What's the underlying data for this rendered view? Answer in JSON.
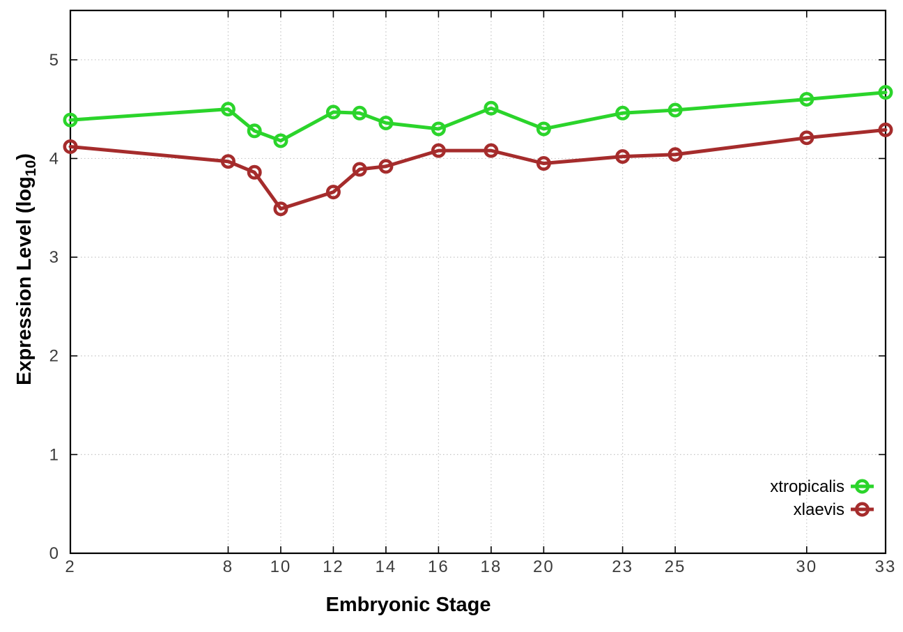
{
  "figure": {
    "background": "#ffffff"
  },
  "chart_data": {
    "type": "line",
    "title": "",
    "xlabel": "Embryonic Stage",
    "ylabel": "Expression Level (log10)",
    "ylabel_parts": {
      "pre": "Expression Level (log",
      "sub": "10",
      "post": ")"
    },
    "x": [
      2,
      8,
      9,
      10,
      12,
      13,
      14,
      16,
      18,
      20,
      23,
      25,
      30,
      33
    ],
    "series": [
      {
        "name": "xtropicalis",
        "color": "#2bd42b",
        "marker": "open-circle",
        "values": [
          4.39,
          4.5,
          4.28,
          4.18,
          4.47,
          4.46,
          4.36,
          4.3,
          4.51,
          4.3,
          4.46,
          4.49,
          4.6,
          4.67
        ]
      },
      {
        "name": "xlaevis",
        "color": "#a52c2c",
        "marker": "open-circle",
        "values": [
          4.12,
          3.97,
          3.86,
          3.49,
          3.66,
          3.89,
          3.92,
          4.08,
          4.08,
          3.95,
          4.02,
          4.04,
          4.21,
          4.29
        ]
      }
    ],
    "xticks": [
      2,
      8,
      10,
      12,
      14,
      16,
      18,
      20,
      23,
      25,
      30,
      33
    ],
    "yticks": [
      0,
      1,
      2,
      3,
      4,
      5
    ],
    "xlim": [
      2,
      33
    ],
    "ylim": [
      0,
      5.5
    ],
    "grid": true,
    "grid_style": "dotted",
    "legend_position": "bottom-right-inside",
    "legend_entries": [
      "xtropicalis",
      "xlaevis"
    ],
    "colors": {
      "grid": "#c4c4c4",
      "axis": "#000000",
      "tick_label": "#3c3c3c",
      "axis_title": "#000000",
      "legend_text": "#000000"
    }
  }
}
